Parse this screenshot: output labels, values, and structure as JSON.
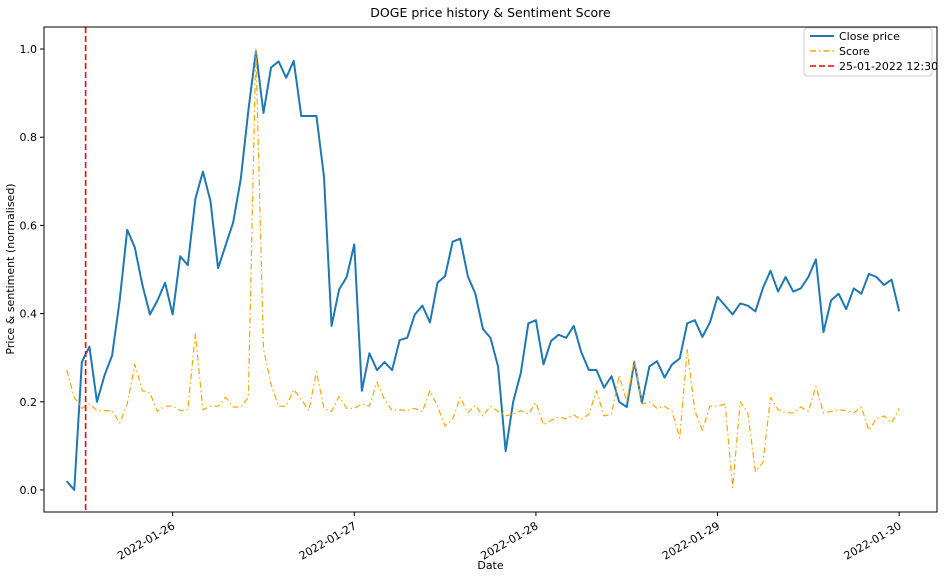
{
  "chart_data": {
    "type": "line",
    "title": "DOGE price history & Sentiment Score",
    "xlabel": "Date",
    "ylabel": "Price & sentiment (normalised)",
    "x_range": [
      "2022-01-25T07:00",
      "2022-01-30T05:00"
    ],
    "ylim": [
      -0.05,
      1.05
    ],
    "x_ticks": [
      {
        "date": "2022-01-26T00:00",
        "label": "2022-01-26"
      },
      {
        "date": "2022-01-27T00:00",
        "label": "2022-01-27"
      },
      {
        "date": "2022-01-28T00:00",
        "label": "2022-01-28"
      },
      {
        "date": "2022-01-29T00:00",
        "label": "2022-01-29"
      },
      {
        "date": "2022-01-30T00:00",
        "label": "2022-01-30"
      }
    ],
    "y_ticks": [
      {
        "value": 0.0,
        "label": "0.0"
      },
      {
        "value": 0.2,
        "label": "0.2"
      },
      {
        "value": 0.4,
        "label": "0.4"
      },
      {
        "value": 0.6,
        "label": "0.6"
      },
      {
        "value": 0.8,
        "label": "0.8"
      },
      {
        "value": 1.0,
        "label": "1.0"
      }
    ],
    "legend_position": "top-right",
    "series": [
      {
        "name": "Close price",
        "color": "#1f77b4",
        "style": "solid",
        "points": [
          [
            "2022-01-25T10:00",
            0.02
          ],
          [
            "2022-01-25T11:00",
            0.0
          ],
          [
            "2022-01-25T12:00",
            0.29
          ],
          [
            "2022-01-25T13:00",
            0.325
          ],
          [
            "2022-01-25T14:00",
            0.2
          ],
          [
            "2022-01-25T15:00",
            0.26
          ],
          [
            "2022-01-25T16:00",
            0.305
          ],
          [
            "2022-01-25T17:00",
            0.43
          ],
          [
            "2022-01-25T18:00",
            0.59
          ],
          [
            "2022-01-25T19:00",
            0.55
          ],
          [
            "2022-01-25T20:00",
            0.465
          ],
          [
            "2022-01-25T21:00",
            0.398
          ],
          [
            "2022-01-25T22:00",
            0.43
          ],
          [
            "2022-01-25T23:00",
            0.47
          ],
          [
            "2022-01-26T00:00",
            0.398
          ],
          [
            "2022-01-26T01:00",
            0.53
          ],
          [
            "2022-01-26T02:00",
            0.51
          ],
          [
            "2022-01-26T03:00",
            0.66
          ],
          [
            "2022-01-26T04:00",
            0.722
          ],
          [
            "2022-01-26T05:00",
            0.655
          ],
          [
            "2022-01-26T06:00",
            0.503
          ],
          [
            "2022-01-26T07:00",
            0.555
          ],
          [
            "2022-01-26T08:00",
            0.607
          ],
          [
            "2022-01-26T09:00",
            0.705
          ],
          [
            "2022-01-26T10:00",
            0.86
          ],
          [
            "2022-01-26T11:00",
            0.995
          ],
          [
            "2022-01-26T12:00",
            0.855
          ],
          [
            "2022-01-26T13:00",
            0.958
          ],
          [
            "2022-01-26T14:00",
            0.972
          ],
          [
            "2022-01-26T15:00",
            0.935
          ],
          [
            "2022-01-26T16:00",
            0.973
          ],
          [
            "2022-01-26T17:00",
            0.848
          ],
          [
            "2022-01-26T18:00",
            0.848
          ],
          [
            "2022-01-26T19:00",
            0.848
          ],
          [
            "2022-01-26T20:00",
            0.71
          ],
          [
            "2022-01-26T21:00",
            0.372
          ],
          [
            "2022-01-26T22:00",
            0.455
          ],
          [
            "2022-01-26T23:00",
            0.483
          ],
          [
            "2022-01-27T00:00",
            0.557
          ],
          [
            "2022-01-27T01:00",
            0.225
          ],
          [
            "2022-01-27T02:00",
            0.31
          ],
          [
            "2022-01-27T03:00",
            0.272
          ],
          [
            "2022-01-27T04:00",
            0.29
          ],
          [
            "2022-01-27T05:00",
            0.272
          ],
          [
            "2022-01-27T06:00",
            0.34
          ],
          [
            "2022-01-27T07:00",
            0.345
          ],
          [
            "2022-01-27T08:00",
            0.398
          ],
          [
            "2022-01-27T09:00",
            0.418
          ],
          [
            "2022-01-27T10:00",
            0.38
          ],
          [
            "2022-01-27T11:00",
            0.47
          ],
          [
            "2022-01-27T12:00",
            0.485
          ],
          [
            "2022-01-27T13:00",
            0.563
          ],
          [
            "2022-01-27T14:00",
            0.57
          ],
          [
            "2022-01-27T15:00",
            0.485
          ],
          [
            "2022-01-27T16:00",
            0.445
          ],
          [
            "2022-01-27T17:00",
            0.365
          ],
          [
            "2022-01-27T18:00",
            0.345
          ],
          [
            "2022-01-27T19:00",
            0.28
          ],
          [
            "2022-01-27T20:00",
            0.088
          ],
          [
            "2022-01-27T21:00",
            0.2
          ],
          [
            "2022-01-27T22:00",
            0.265
          ],
          [
            "2022-01-27T23:00",
            0.378
          ],
          [
            "2022-01-28T00:00",
            0.385
          ],
          [
            "2022-01-28T01:00",
            0.285
          ],
          [
            "2022-01-28T02:00",
            0.338
          ],
          [
            "2022-01-28T03:00",
            0.352
          ],
          [
            "2022-01-28T04:00",
            0.345
          ],
          [
            "2022-01-28T05:00",
            0.372
          ],
          [
            "2022-01-28T06:00",
            0.312
          ],
          [
            "2022-01-28T07:00",
            0.272
          ],
          [
            "2022-01-28T08:00",
            0.272
          ],
          [
            "2022-01-28T09:00",
            0.232
          ],
          [
            "2022-01-28T10:00",
            0.258
          ],
          [
            "2022-01-28T11:00",
            0.2
          ],
          [
            "2022-01-28T12:00",
            0.188
          ],
          [
            "2022-01-28T13:00",
            0.29
          ],
          [
            "2022-01-28T14:00",
            0.198
          ],
          [
            "2022-01-28T15:00",
            0.28
          ],
          [
            "2022-01-28T16:00",
            0.292
          ],
          [
            "2022-01-28T17:00",
            0.255
          ],
          [
            "2022-01-28T18:00",
            0.285
          ],
          [
            "2022-01-28T19:00",
            0.298
          ],
          [
            "2022-01-28T20:00",
            0.378
          ],
          [
            "2022-01-28T21:00",
            0.385
          ],
          [
            "2022-01-28T22:00",
            0.347
          ],
          [
            "2022-01-28T23:00",
            0.38
          ],
          [
            "2022-01-29T00:00",
            0.438
          ],
          [
            "2022-01-29T01:00",
            0.418
          ],
          [
            "2022-01-29T02:00",
            0.398
          ],
          [
            "2022-01-29T03:00",
            0.423
          ],
          [
            "2022-01-29T04:00",
            0.418
          ],
          [
            "2022-01-29T05:00",
            0.405
          ],
          [
            "2022-01-29T06:00",
            0.458
          ],
          [
            "2022-01-29T07:00",
            0.497
          ],
          [
            "2022-01-29T08:00",
            0.45
          ],
          [
            "2022-01-29T09:00",
            0.483
          ],
          [
            "2022-01-29T10:00",
            0.45
          ],
          [
            "2022-01-29T11:00",
            0.457
          ],
          [
            "2022-01-29T12:00",
            0.483
          ],
          [
            "2022-01-29T13:00",
            0.523
          ],
          [
            "2022-01-29T14:00",
            0.358
          ],
          [
            "2022-01-29T15:00",
            0.43
          ],
          [
            "2022-01-29T16:00",
            0.445
          ],
          [
            "2022-01-29T17:00",
            0.41
          ],
          [
            "2022-01-29T18:00",
            0.457
          ],
          [
            "2022-01-29T19:00",
            0.445
          ],
          [
            "2022-01-29T20:00",
            0.49
          ],
          [
            "2022-01-29T21:00",
            0.483
          ],
          [
            "2022-01-29T22:00",
            0.465
          ],
          [
            "2022-01-29T23:00",
            0.477
          ],
          [
            "2022-01-30T00:00",
            0.405
          ]
        ]
      },
      {
        "name": "Score",
        "color": "#ffa500",
        "style": "dashdot",
        "points": [
          [
            "2022-01-25T10:00",
            0.272
          ],
          [
            "2022-01-25T11:00",
            0.21
          ],
          [
            "2022-01-25T12:00",
            0.185
          ],
          [
            "2022-01-25T13:00",
            0.195
          ],
          [
            "2022-01-25T14:00",
            0.18
          ],
          [
            "2022-01-25T15:00",
            0.18
          ],
          [
            "2022-01-25T16:00",
            0.18
          ],
          [
            "2022-01-25T17:00",
            0.152
          ],
          [
            "2022-01-25T18:00",
            0.195
          ],
          [
            "2022-01-25T19:00",
            0.285
          ],
          [
            "2022-01-25T20:00",
            0.225
          ],
          [
            "2022-01-25T21:00",
            0.22
          ],
          [
            "2022-01-25T22:00",
            0.178
          ],
          [
            "2022-01-25T23:00",
            0.19
          ],
          [
            "2022-01-26T00:00",
            0.19
          ],
          [
            "2022-01-26T01:00",
            0.18
          ],
          [
            "2022-01-26T02:00",
            0.182
          ],
          [
            "2022-01-26T03:00",
            0.355
          ],
          [
            "2022-01-26T04:00",
            0.182
          ],
          [
            "2022-01-26T05:00",
            0.19
          ],
          [
            "2022-01-26T06:00",
            0.19
          ],
          [
            "2022-01-26T07:00",
            0.21
          ],
          [
            "2022-01-26T08:00",
            0.188
          ],
          [
            "2022-01-26T09:00",
            0.188
          ],
          [
            "2022-01-26T10:00",
            0.21
          ],
          [
            "2022-01-26T11:00",
            1.0
          ],
          [
            "2022-01-26T12:00",
            0.32
          ],
          [
            "2022-01-26T13:00",
            0.24
          ],
          [
            "2022-01-26T14:00",
            0.19
          ],
          [
            "2022-01-26T15:00",
            0.19
          ],
          [
            "2022-01-26T16:00",
            0.228
          ],
          [
            "2022-01-26T17:00",
            0.205
          ],
          [
            "2022-01-26T18:00",
            0.18
          ],
          [
            "2022-01-26T19:00",
            0.268
          ],
          [
            "2022-01-26T20:00",
            0.185
          ],
          [
            "2022-01-26T21:00",
            0.178
          ],
          [
            "2022-01-26T22:00",
            0.212
          ],
          [
            "2022-01-26T23:00",
            0.185
          ],
          [
            "2022-01-27T00:00",
            0.185
          ],
          [
            "2022-01-27T01:00",
            0.195
          ],
          [
            "2022-01-27T02:00",
            0.19
          ],
          [
            "2022-01-27T03:00",
            0.245
          ],
          [
            "2022-01-27T04:00",
            0.205
          ],
          [
            "2022-01-27T05:00",
            0.18
          ],
          [
            "2022-01-27T06:00",
            0.182
          ],
          [
            "2022-01-27T07:00",
            0.18
          ],
          [
            "2022-01-27T08:00",
            0.185
          ],
          [
            "2022-01-27T09:00",
            0.178
          ],
          [
            "2022-01-27T10:00",
            0.225
          ],
          [
            "2022-01-27T11:00",
            0.19
          ],
          [
            "2022-01-27T12:00",
            0.145
          ],
          [
            "2022-01-27T13:00",
            0.16
          ],
          [
            "2022-01-27T14:00",
            0.21
          ],
          [
            "2022-01-27T15:00",
            0.175
          ],
          [
            "2022-01-27T16:00",
            0.192
          ],
          [
            "2022-01-27T17:00",
            0.168
          ],
          [
            "2022-01-27T18:00",
            0.19
          ],
          [
            "2022-01-27T19:00",
            0.178
          ],
          [
            "2022-01-27T20:00",
            0.168
          ],
          [
            "2022-01-27T21:00",
            0.172
          ],
          [
            "2022-01-27T22:00",
            0.18
          ],
          [
            "2022-01-27T23:00",
            0.172
          ],
          [
            "2022-01-28T00:00",
            0.198
          ],
          [
            "2022-01-28T01:00",
            0.148
          ],
          [
            "2022-01-28T02:00",
            0.158
          ],
          [
            "2022-01-28T03:00",
            0.165
          ],
          [
            "2022-01-28T04:00",
            0.162
          ],
          [
            "2022-01-28T05:00",
            0.17
          ],
          [
            "2022-01-28T06:00",
            0.16
          ],
          [
            "2022-01-28T07:00",
            0.172
          ],
          [
            "2022-01-28T08:00",
            0.225
          ],
          [
            "2022-01-28T09:00",
            0.168
          ],
          [
            "2022-01-28T10:00",
            0.172
          ],
          [
            "2022-01-28T11:00",
            0.26
          ],
          [
            "2022-01-28T12:00",
            0.2
          ],
          [
            "2022-01-28T13:00",
            0.295
          ],
          [
            "2022-01-28T14:00",
            0.195
          ],
          [
            "2022-01-28T15:00",
            0.2
          ],
          [
            "2022-01-28T16:00",
            0.185
          ],
          [
            "2022-01-28T17:00",
            0.19
          ],
          [
            "2022-01-28T18:00",
            0.178
          ],
          [
            "2022-01-28T19:00",
            0.118
          ],
          [
            "2022-01-28T20:00",
            0.318
          ],
          [
            "2022-01-28T21:00",
            0.18
          ],
          [
            "2022-01-28T22:00",
            0.135
          ],
          [
            "2022-01-28T23:00",
            0.19
          ],
          [
            "2022-01-29T00:00",
            0.19
          ],
          [
            "2022-01-29T01:00",
            0.195
          ],
          [
            "2022-01-29T02:00",
            0.005
          ],
          [
            "2022-01-29T03:00",
            0.2
          ],
          [
            "2022-01-29T04:00",
            0.175
          ],
          [
            "2022-01-29T05:00",
            0.042
          ],
          [
            "2022-01-29T06:00",
            0.062
          ],
          [
            "2022-01-29T07:00",
            0.21
          ],
          [
            "2022-01-29T08:00",
            0.182
          ],
          [
            "2022-01-29T09:00",
            0.175
          ],
          [
            "2022-01-29T10:00",
            0.175
          ],
          [
            "2022-01-29T11:00",
            0.188
          ],
          [
            "2022-01-29T12:00",
            0.178
          ],
          [
            "2022-01-29T13:00",
            0.235
          ],
          [
            "2022-01-29T14:00",
            0.175
          ],
          [
            "2022-01-29T15:00",
            0.178
          ],
          [
            "2022-01-29T16:00",
            0.182
          ],
          [
            "2022-01-29T17:00",
            0.18
          ],
          [
            "2022-01-29T18:00",
            0.175
          ],
          [
            "2022-01-29T19:00",
            0.188
          ],
          [
            "2022-01-29T20:00",
            0.135
          ],
          [
            "2022-01-29T21:00",
            0.162
          ],
          [
            "2022-01-29T22:00",
            0.168
          ],
          [
            "2022-01-29T23:00",
            0.152
          ],
          [
            "2022-01-30T00:00",
            0.185
          ]
        ]
      },
      {
        "name": "25-01-2022 12:30",
        "color": "#ff0000",
        "style": "dashed",
        "vline_x": "2022-01-25T12:30"
      }
    ]
  }
}
